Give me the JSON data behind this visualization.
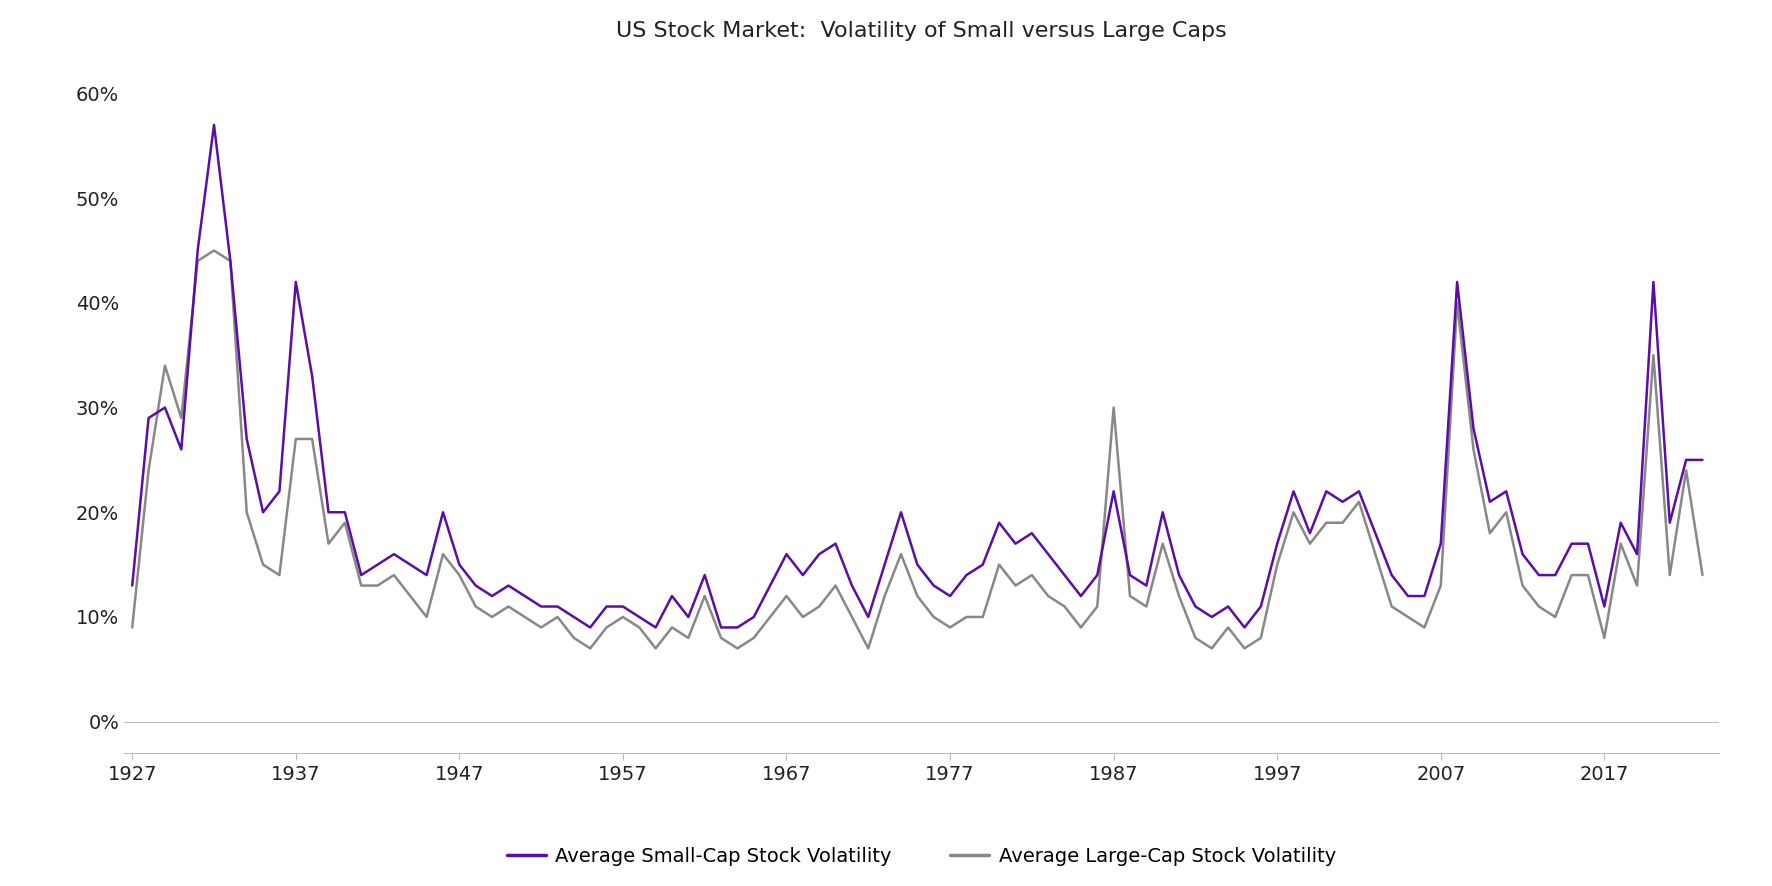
{
  "title": "US Stock Market:  Volatility of Small versus Large Caps",
  "small_cap_color": "#5b0ea6",
  "large_cap_color": "#888888",
  "small_cap_label": "Average Small-Cap Stock Volatility",
  "large_cap_label": "Average Large-Cap Stock Volatility",
  "line_width": 1.8,
  "background_color": "#ffffff",
  "years": [
    1927,
    1928,
    1929,
    1930,
    1931,
    1932,
    1933,
    1934,
    1935,
    1936,
    1937,
    1938,
    1939,
    1940,
    1941,
    1942,
    1943,
    1944,
    1945,
    1946,
    1947,
    1948,
    1949,
    1950,
    1951,
    1952,
    1953,
    1954,
    1955,
    1956,
    1957,
    1958,
    1959,
    1960,
    1961,
    1962,
    1963,
    1964,
    1965,
    1966,
    1967,
    1968,
    1969,
    1970,
    1971,
    1972,
    1973,
    1974,
    1975,
    1976,
    1977,
    1978,
    1979,
    1980,
    1981,
    1982,
    1983,
    1984,
    1985,
    1986,
    1987,
    1988,
    1989,
    1990,
    1991,
    1992,
    1993,
    1994,
    1995,
    1996,
    1997,
    1998,
    1999,
    2000,
    2001,
    2002,
    2003,
    2004,
    2005,
    2006,
    2007,
    2008,
    2009,
    2010,
    2011,
    2012,
    2013,
    2014,
    2015,
    2016,
    2017,
    2018,
    2019,
    2020,
    2021,
    2022,
    2023
  ],
  "small_cap": [
    0.13,
    0.29,
    0.3,
    0.26,
    0.45,
    0.57,
    0.44,
    0.27,
    0.2,
    0.22,
    0.42,
    0.33,
    0.2,
    0.2,
    0.14,
    0.15,
    0.16,
    0.15,
    0.14,
    0.2,
    0.15,
    0.13,
    0.12,
    0.13,
    0.12,
    0.11,
    0.11,
    0.1,
    0.09,
    0.11,
    0.11,
    0.1,
    0.09,
    0.12,
    0.1,
    0.14,
    0.09,
    0.09,
    0.1,
    0.13,
    0.16,
    0.14,
    0.16,
    0.17,
    0.13,
    0.1,
    0.15,
    0.2,
    0.15,
    0.13,
    0.12,
    0.14,
    0.15,
    0.19,
    0.17,
    0.18,
    0.16,
    0.14,
    0.12,
    0.14,
    0.22,
    0.14,
    0.13,
    0.2,
    0.14,
    0.11,
    0.1,
    0.11,
    0.09,
    0.11,
    0.17,
    0.22,
    0.18,
    0.22,
    0.21,
    0.22,
    0.18,
    0.14,
    0.12,
    0.12,
    0.17,
    0.42,
    0.28,
    0.21,
    0.22,
    0.16,
    0.14,
    0.14,
    0.17,
    0.17,
    0.11,
    0.19,
    0.16,
    0.42,
    0.19,
    0.25,
    0.25
  ],
  "large_cap": [
    0.09,
    0.24,
    0.34,
    0.29,
    0.44,
    0.45,
    0.44,
    0.2,
    0.15,
    0.14,
    0.27,
    0.27,
    0.17,
    0.19,
    0.13,
    0.13,
    0.14,
    0.12,
    0.1,
    0.16,
    0.14,
    0.11,
    0.1,
    0.11,
    0.1,
    0.09,
    0.1,
    0.08,
    0.07,
    0.09,
    0.1,
    0.09,
    0.07,
    0.09,
    0.08,
    0.12,
    0.08,
    0.07,
    0.08,
    0.1,
    0.12,
    0.1,
    0.11,
    0.13,
    0.1,
    0.07,
    0.12,
    0.16,
    0.12,
    0.1,
    0.09,
    0.1,
    0.1,
    0.15,
    0.13,
    0.14,
    0.12,
    0.11,
    0.09,
    0.11,
    0.3,
    0.12,
    0.11,
    0.17,
    0.12,
    0.08,
    0.07,
    0.09,
    0.07,
    0.08,
    0.15,
    0.2,
    0.17,
    0.19,
    0.19,
    0.21,
    0.16,
    0.11,
    0.1,
    0.09,
    0.13,
    0.4,
    0.26,
    0.18,
    0.2,
    0.13,
    0.11,
    0.1,
    0.14,
    0.14,
    0.08,
    0.17,
    0.13,
    0.35,
    0.14,
    0.24,
    0.14
  ],
  "yticks": [
    0.0,
    0.1,
    0.2,
    0.3,
    0.4,
    0.5,
    0.6
  ],
  "ytick_labels": [
    "0%",
    "10%",
    "20%",
    "30%",
    "40%",
    "50%",
    "60%"
  ],
  "xticks": [
    1927,
    1937,
    1947,
    1957,
    1967,
    1977,
    1987,
    1997,
    2007,
    2017
  ],
  "ylim": [
    -0.03,
    0.63
  ],
  "xlim": [
    1926.5,
    2024
  ]
}
